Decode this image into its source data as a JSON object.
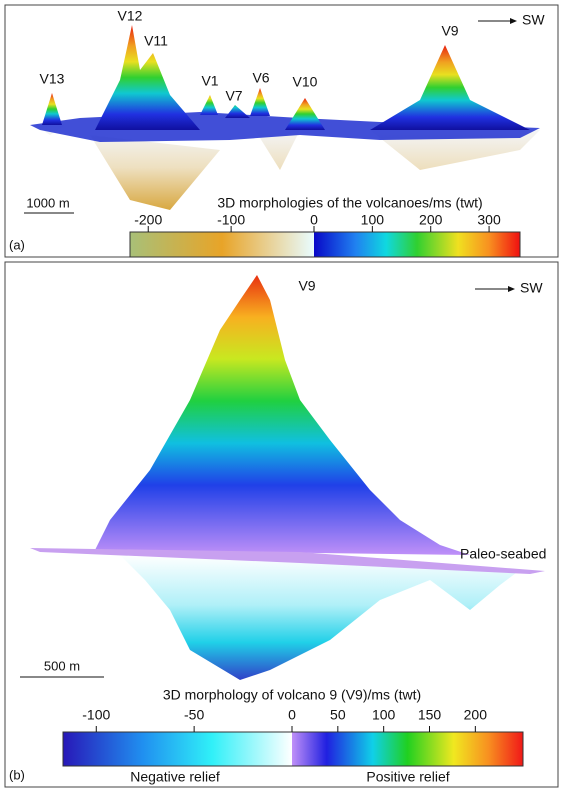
{
  "panel_a": {
    "label": "(a)",
    "direction": "SW",
    "scale_bar": "1000 m",
    "volcano_labels": [
      "V13",
      "V12",
      "V11",
      "V1",
      "V7",
      "V6",
      "V10",
      "V9"
    ],
    "colorbar": {
      "title": "3D morphologies of the volcanoes/ms (twt)",
      "negative_lim": [
        -222,
        0
      ],
      "positive_lim": [
        0,
        353
      ],
      "ticks": [
        -200,
        -100,
        0,
        100,
        200,
        300
      ]
    }
  },
  "panel_b": {
    "label": "(b)",
    "direction": "SW",
    "volcano_label": "V9",
    "surface_label": "Paleo-seabed",
    "scale_bar": "500 m",
    "colorbar": {
      "title": "3D morphology of volcano 9 (V9)/ms (twt)",
      "negative_lim": [
        -117,
        0
      ],
      "positive_lim": [
        0,
        252
      ],
      "ticks": [
        -100,
        -50,
        0,
        50,
        100,
        150,
        200
      ],
      "negative_caption": "Negative relief",
      "positive_caption": "Positive relief"
    }
  }
}
